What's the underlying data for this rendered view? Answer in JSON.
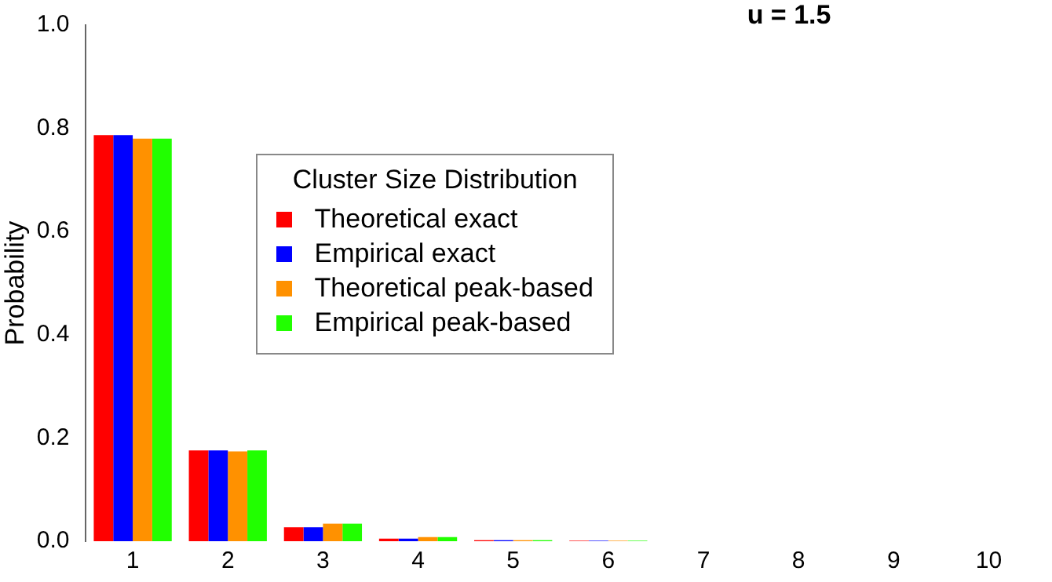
{
  "chart_data": {
    "type": "bar",
    "title": "u = 1.5",
    "ylabel": "Probability",
    "legend_title": "Cluster Size Distribution",
    "categories": [
      "1",
      "2",
      "3",
      "4",
      "5",
      "6",
      "7",
      "8",
      "9",
      "10"
    ],
    "series": [
      {
        "name": "Theoretical exact",
        "color": "#ff0000",
        "values": [
          0.787,
          0.176,
          0.027,
          0.005,
          0.002,
          0.001,
          0,
          0,
          0,
          0
        ]
      },
      {
        "name": "Empirical exact",
        "color": "#0000ff",
        "values": [
          0.787,
          0.176,
          0.027,
          0.005,
          0.002,
          0.001,
          0,
          0,
          0,
          0
        ]
      },
      {
        "name": "Theoretical peak-based",
        "color": "#ff9100",
        "values": [
          0.78,
          0.174,
          0.034,
          0.008,
          0.002,
          0.001,
          0,
          0,
          0,
          0
        ]
      },
      {
        "name": "Empirical peak-based",
        "color": "#21ff00",
        "values": [
          0.78,
          0.176,
          0.034,
          0.008,
          0.002,
          0.001,
          0,
          0,
          0,
          0
        ]
      }
    ],
    "ylim": [
      0,
      1
    ],
    "yticks": [
      {
        "value": 0,
        "label": "0.0"
      },
      0.2,
      0.4,
      0.6,
      0.8,
      {
        "value": 1,
        "label": "1.0"
      }
    ],
    "grid": false,
    "legend": "center"
  }
}
